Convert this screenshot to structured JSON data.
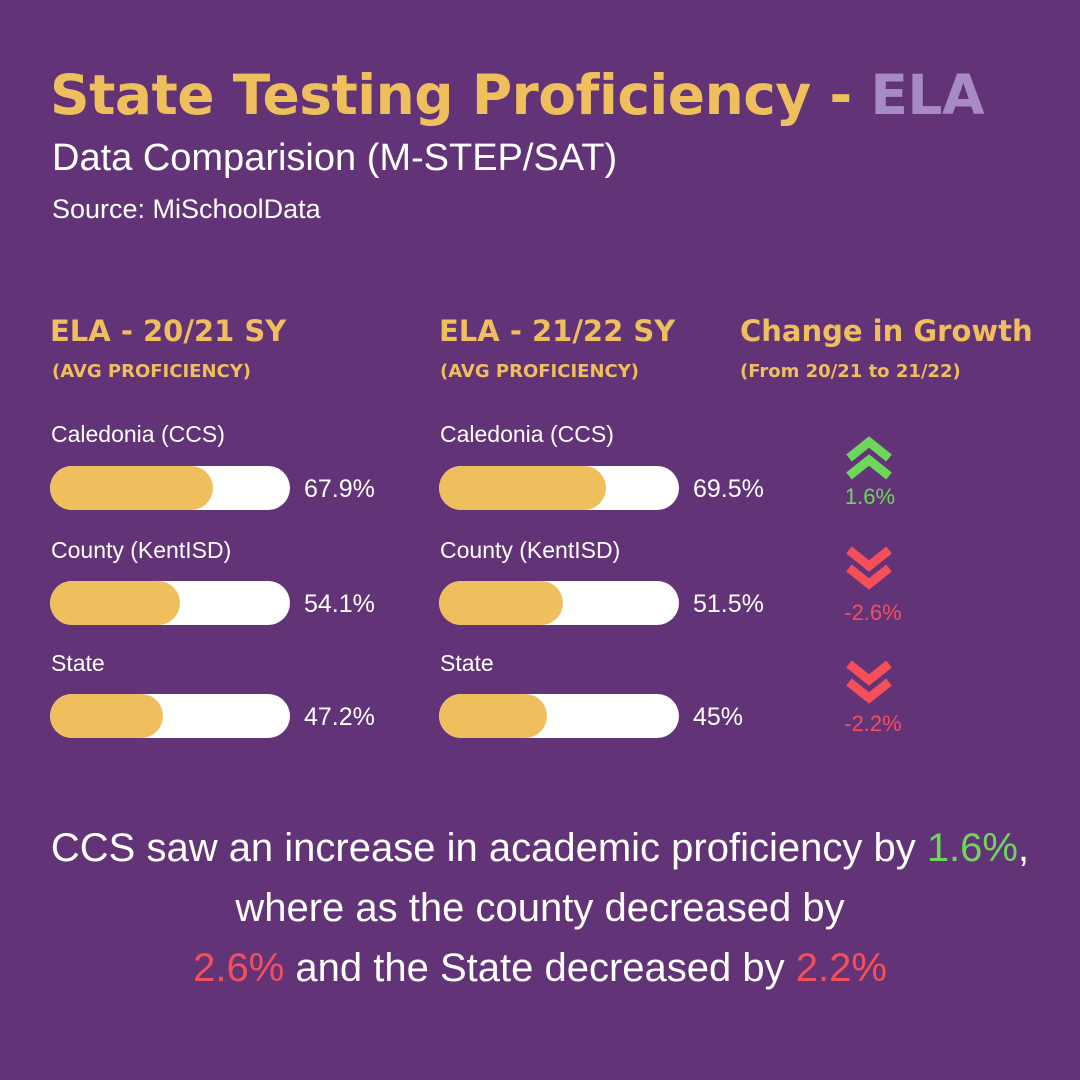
{
  "header": {
    "title_main": "State Testing Proficiency - ",
    "title_accent": "ELA",
    "subtitle": "Data Comparision (M-STEP/SAT)",
    "source": "Source: MiSchoolData"
  },
  "columns": [
    {
      "heading": "ELA - 20/21 SY",
      "subheading": "(AVG PROFICIENCY)"
    },
    {
      "heading": "ELA - 21/22 SY",
      "subheading": "(AVG PROFICIENCY)"
    },
    {
      "heading": "Change in Growth",
      "subheading": "(From 20/21 to 21/22)"
    }
  ],
  "rows": [
    {
      "label": "Caledonia (CCS)",
      "sy2021": "67.9%",
      "sy2021_value": 67.9,
      "sy2122": "69.5%",
      "sy2122_value": 69.5,
      "change": "1.6%",
      "direction": "up",
      "icon": "double-chevron-up-icon"
    },
    {
      "label": "County (KentISD)",
      "sy2021": "54.1%",
      "sy2021_value": 54.1,
      "sy2122": "51.5%",
      "sy2122_value": 51.5,
      "change": "-2.6%",
      "direction": "down",
      "icon": "double-chevron-down-icon"
    },
    {
      "label": "State",
      "sy2021": "47.2%",
      "sy2021_value": 47.2,
      "sy2122": "45%",
      "sy2122_value": 45,
      "change": "-2.2%",
      "direction": "down",
      "icon": "double-chevron-down-icon"
    }
  ],
  "summary": {
    "part1": "CCS saw an increase in academic proficiency by ",
    "val1": "1.6%",
    "part2": ", where as the county decreased by ",
    "val2": "2.6%",
    "part3": " and the State decreased by ",
    "val3": "2.2%"
  },
  "colors": {
    "background": "#623377",
    "gold": "#efbf5e",
    "lavender": "#a78bc4",
    "up": "#6ed65c",
    "down": "#f5505a",
    "track": "#ffffff"
  }
}
